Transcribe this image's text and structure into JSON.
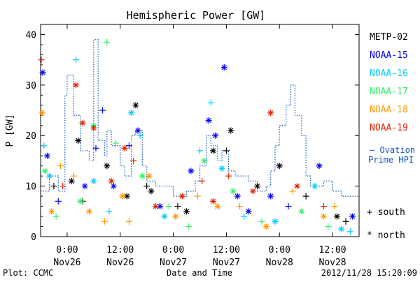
{
  "chart_data": {
    "type": "scatter",
    "title": "Hemispheric Power [GW]",
    "ylabel": "P [GW]",
    "xlabel": "Date and Time",
    "ylim": [
      0,
      42
    ],
    "xlim": [
      "2012-11-25T18:00",
      "2012-11-28T18:00"
    ],
    "yticks": [
      0,
      10,
      20,
      30,
      40
    ],
    "xticks": [
      {
        "time": "2012-11-26T00:00",
        "label1": "0:00",
        "label2": "Nov26"
      },
      {
        "time": "2012-11-26T12:00",
        "label1": "12:00",
        "label2": "Nov26"
      },
      {
        "time": "2012-11-27T00:00",
        "label1": "0:00",
        "label2": "Nov27"
      },
      {
        "time": "2012-11-27T12:00",
        "label1": "12:00",
        "label2": "Nov27"
      },
      {
        "time": "2012-11-28T00:00",
        "label1": "0:00",
        "label2": "Nov28"
      },
      {
        "time": "2012-11-28T12:00",
        "label1": "12:00",
        "label2": "Nov28"
      }
    ],
    "legend_position": "right",
    "marker_legend": [
      {
        "symbol": "+",
        "label": "south"
      },
      {
        "symbol": "*",
        "label": "north"
      }
    ],
    "series": [
      {
        "name": "METP-02",
        "color": "#000000",
        "points": [
          [
            "2012-11-25T21:00",
            10,
            "+"
          ],
          [
            "2012-11-26T01:00",
            11,
            "*"
          ],
          [
            "2012-11-26T02:30",
            19,
            "*"
          ],
          [
            "2012-11-26T03:30",
            7,
            "+"
          ],
          [
            "2012-11-26T09:00",
            14,
            "*"
          ],
          [
            "2012-11-26T13:30",
            8,
            "*"
          ],
          [
            "2012-11-26T15:30",
            26,
            "*"
          ],
          [
            "2012-11-26T18:00",
            10,
            "+"
          ],
          [
            "2012-11-26T19:00",
            9,
            "*"
          ],
          [
            "2012-11-27T01:00",
            6,
            "+"
          ],
          [
            "2012-11-27T03:00",
            5,
            "*"
          ],
          [
            "2012-11-27T09:00",
            17,
            "*"
          ],
          [
            "2012-11-27T12:00",
            17,
            "+"
          ],
          [
            "2012-11-27T13:00",
            21,
            "*"
          ],
          [
            "2012-11-27T19:00",
            10,
            "*"
          ],
          [
            "2012-11-28T00:00",
            14,
            "*"
          ],
          [
            "2012-11-28T06:00",
            8,
            "+"
          ],
          [
            "2012-11-28T13:00",
            4,
            "*"
          ],
          [
            "2012-11-28T15:00",
            3,
            "+"
          ]
        ]
      },
      {
        "name": "NOAA-15",
        "color": "#0000ff",
        "points": [
          [
            "2012-11-25T18:30",
            32.5,
            "*"
          ],
          [
            "2012-11-25T19:30",
            16,
            "*"
          ],
          [
            "2012-11-25T22:00",
            7,
            "+"
          ],
          [
            "2012-11-26T04:00",
            10,
            "*"
          ],
          [
            "2012-11-26T06:30",
            17.5,
            "+"
          ],
          [
            "2012-11-26T08:00",
            25,
            "+"
          ],
          [
            "2012-11-26T10:30",
            10,
            "*"
          ],
          [
            "2012-11-26T14:00",
            18,
            "+"
          ],
          [
            "2012-11-26T16:00",
            21,
            "*"
          ],
          [
            "2012-11-26T21:00",
            6,
            "*"
          ],
          [
            "2012-11-27T04:00",
            13,
            "*"
          ],
          [
            "2012-11-27T08:00",
            23,
            "*"
          ],
          [
            "2012-11-27T09:30",
            20,
            "*"
          ],
          [
            "2012-11-27T11:30",
            33.5,
            "*"
          ],
          [
            "2012-11-27T14:30",
            8,
            "*"
          ],
          [
            "2012-11-27T17:00",
            5,
            "*"
          ],
          [
            "2012-11-27T22:00",
            8,
            "*"
          ],
          [
            "2012-11-28T02:00",
            6,
            "+"
          ],
          [
            "2012-11-28T09:00",
            14,
            "*"
          ],
          [
            "2012-11-28T16:30",
            4,
            "*"
          ]
        ]
      },
      {
        "name": "NOAA-16",
        "color": "#00ccff",
        "points": [
          [
            "2012-11-25T18:45",
            18,
            "+"
          ],
          [
            "2012-11-25T20:00",
            12,
            "*"
          ],
          [
            "2012-11-26T02:00",
            35,
            "+"
          ],
          [
            "2012-11-26T06:00",
            11,
            "*"
          ],
          [
            "2012-11-26T09:30",
            5,
            "+"
          ],
          [
            "2012-11-26T14:30",
            24.5,
            "*"
          ],
          [
            "2012-11-26T16:30",
            20,
            "+"
          ],
          [
            "2012-11-26T22:00",
            4,
            "*"
          ],
          [
            "2012-11-27T06:00",
            17,
            "+"
          ],
          [
            "2012-11-27T08:30",
            26.5,
            "+"
          ],
          [
            "2012-11-27T11:00",
            13.5,
            "*"
          ],
          [
            "2012-11-27T16:00",
            4,
            "+"
          ],
          [
            "2012-11-27T23:00",
            3,
            "*"
          ],
          [
            "2012-11-28T08:00",
            10,
            "*"
          ],
          [
            "2012-11-28T14:00",
            1.5,
            "*"
          ],
          [
            "2012-11-28T16:00",
            1,
            "+"
          ]
        ]
      },
      {
        "name": "NOAA-17",
        "color": "#33ee66",
        "points": [
          [
            "2012-11-25T19:00",
            13,
            "*"
          ],
          [
            "2012-11-25T21:30",
            4,
            "+"
          ],
          [
            "2012-11-26T03:00",
            7,
            "*"
          ],
          [
            "2012-11-26T06:00",
            22,
            "*"
          ],
          [
            "2012-11-26T09:00",
            38.5,
            "+"
          ],
          [
            "2012-11-26T11:00",
            18.5,
            "+"
          ],
          [
            "2012-11-26T17:00",
            12,
            "*"
          ],
          [
            "2012-11-26T23:00",
            6,
            "+"
          ],
          [
            "2012-11-27T03:30",
            2,
            "+"
          ],
          [
            "2012-11-27T07:00",
            15,
            "*"
          ],
          [
            "2012-11-27T13:30",
            9,
            "*"
          ],
          [
            "2012-11-27T20:00",
            3,
            "+"
          ],
          [
            "2012-11-28T05:00",
            5,
            "*"
          ],
          [
            "2012-11-28T11:00",
            2,
            "+"
          ]
        ]
      },
      {
        "name": "NOAA-18",
        "color": "#ff9900",
        "points": [
          [
            "2012-11-25T18:20",
            24.5,
            "*"
          ],
          [
            "2012-11-25T20:30",
            5,
            "*"
          ],
          [
            "2012-11-25T22:30",
            14,
            "+"
          ],
          [
            "2012-11-26T01:30",
            12,
            "+"
          ],
          [
            "2012-11-26T05:00",
            5,
            "*"
          ],
          [
            "2012-11-26T08:30",
            3,
            "+"
          ],
          [
            "2012-11-26T12:30",
            8,
            "*"
          ],
          [
            "2012-11-26T14:00",
            3,
            "+"
          ],
          [
            "2012-11-26T18:30",
            12,
            "*"
          ],
          [
            "2012-11-27T00:30",
            4,
            "*"
          ],
          [
            "2012-11-27T05:30",
            8,
            "+"
          ],
          [
            "2012-11-27T10:00",
            6,
            "*"
          ],
          [
            "2012-11-27T15:00",
            6,
            "+"
          ],
          [
            "2012-11-27T21:00",
            2,
            "*"
          ],
          [
            "2012-11-28T03:00",
            9,
            "+"
          ],
          [
            "2012-11-28T10:00",
            4,
            "*"
          ],
          [
            "2012-11-28T12:30",
            6,
            "+"
          ]
        ]
      },
      {
        "name": "NOAA-19",
        "color": "#dd2200",
        "points": [
          [
            "2012-11-25T18:10",
            35,
            "+"
          ],
          [
            "2012-11-25T23:00",
            10,
            "+"
          ],
          [
            "2012-11-26T02:00",
            30,
            "*"
          ],
          [
            "2012-11-26T03:30",
            22.5,
            "*"
          ],
          [
            "2012-11-26T06:00",
            21.5,
            "*"
          ],
          [
            "2012-11-26T10:00",
            11,
            "*"
          ],
          [
            "2012-11-26T13:00",
            17.5,
            "*"
          ],
          [
            "2012-11-26T15:00",
            15,
            "+"
          ],
          [
            "2012-11-26T20:00",
            6,
            "*"
          ],
          [
            "2012-11-27T02:00",
            8,
            "*"
          ],
          [
            "2012-11-27T06:30",
            11,
            "+"
          ],
          [
            "2012-11-27T09:00",
            7,
            "*"
          ],
          [
            "2012-11-27T12:30",
            12,
            "+"
          ],
          [
            "2012-11-27T18:00",
            9,
            "*"
          ],
          [
            "2012-11-27T22:00",
            24.5,
            "*"
          ],
          [
            "2012-11-28T04:00",
            10,
            "*"
          ],
          [
            "2012-11-28T10:00",
            6,
            "+"
          ]
        ]
      },
      {
        "name": "Ovation Prime HPI",
        "color": "#1155cc",
        "style": "step-dotted",
        "points": [
          [
            "2012-11-25T18:00",
            9
          ],
          [
            "2012-11-25T20:00",
            12
          ],
          [
            "2012-11-25T22:00",
            9
          ],
          [
            "2012-11-25T23:30",
            28
          ],
          [
            "2012-11-26T00:00",
            32
          ],
          [
            "2012-11-26T01:30",
            24
          ],
          [
            "2012-11-26T03:00",
            17
          ],
          [
            "2012-11-26T05:00",
            15
          ],
          [
            "2012-11-26T06:00",
            39
          ],
          [
            "2012-11-26T07:00",
            19
          ],
          [
            "2012-11-26T08:30",
            16
          ],
          [
            "2012-11-26T09:00",
            21
          ],
          [
            "2012-11-26T10:00",
            18
          ],
          [
            "2012-11-26T12:00",
            14
          ],
          [
            "2012-11-26T13:00",
            12
          ],
          [
            "2012-11-26T14:30",
            20
          ],
          [
            "2012-11-26T15:30",
            21
          ],
          [
            "2012-11-26T17:00",
            14
          ],
          [
            "2012-11-26T18:00",
            11
          ],
          [
            "2012-11-26T20:00",
            10
          ],
          [
            "2012-11-27T00:00",
            8
          ],
          [
            "2012-11-27T03:00",
            9
          ],
          [
            "2012-11-27T05:00",
            11
          ],
          [
            "2012-11-27T06:00",
            14
          ],
          [
            "2012-11-27T07:30",
            20
          ],
          [
            "2012-11-27T08:30",
            18
          ],
          [
            "2012-11-27T10:00",
            15
          ],
          [
            "2012-11-27T11:00",
            17
          ],
          [
            "2012-11-27T12:30",
            13
          ],
          [
            "2012-11-27T14:00",
            12
          ],
          [
            "2012-11-27T17:00",
            11
          ],
          [
            "2012-11-27T19:00",
            9
          ],
          [
            "2012-11-27T21:00",
            10
          ],
          [
            "2012-11-27T22:00",
            13
          ],
          [
            "2012-11-27T23:00",
            18
          ],
          [
            "2012-11-28T00:00",
            22
          ],
          [
            "2012-11-28T01:30",
            26
          ],
          [
            "2012-11-28T02:30",
            30
          ],
          [
            "2012-11-28T03:30",
            24
          ],
          [
            "2012-11-28T05:00",
            20
          ],
          [
            "2012-11-28T06:00",
            12
          ],
          [
            "2012-11-28T07:00",
            10
          ],
          [
            "2012-11-28T10:00",
            11
          ],
          [
            "2012-11-28T12:00",
            9
          ],
          [
            "2012-11-28T14:00",
            8
          ],
          [
            "2012-11-28T18:00",
            8
          ]
        ]
      }
    ]
  },
  "footer": {
    "plot_credit": "Plot: CCMC",
    "timestamp": "2012/11/28 15:20:09"
  },
  "legend_extra": {
    "ovation_line1": "– Ovation",
    "ovation_line2": "Prime HPI"
  }
}
